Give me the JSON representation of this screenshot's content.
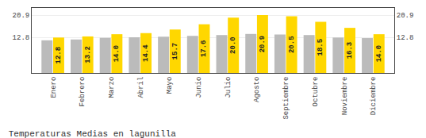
{
  "chart_data": {
    "type": "bar",
    "title": "Temperaturas Medias en lagunilla",
    "categories": [
      "Enero",
      "Febrero",
      "Marzo",
      "Abril",
      "Mayo",
      "Junio",
      "Julio",
      "Agosto",
      "Septiembre",
      "Octubre",
      "Noviembre",
      "Diciembre"
    ],
    "series": [
      {
        "color": "#BBBBBB",
        "values": [
          11.8,
          12.1,
          12.7,
          12.9,
          13.1,
          13.4,
          13.7,
          14.1,
          13.9,
          13.7,
          12.8,
          12.6
        ]
      },
      {
        "color": "#FFD700",
        "values": [
          12.8,
          13.2,
          14.0,
          14.4,
          15.7,
          17.6,
          20.0,
          20.9,
          20.5,
          18.5,
          16.3,
          14.0
        ],
        "data_labels": true,
        "value_labels": [
          "12.8",
          "13.2",
          "14.0",
          "14.4",
          "15.7",
          "17.6",
          "20.0",
          "20.9",
          "20.5",
          "18.5",
          "16.3",
          "14.0"
        ]
      }
    ],
    "ylim": [
      0,
      23.5
    ],
    "yticks": [
      12.8,
      20.9
    ],
    "y2lim": [
      0,
      23.5
    ],
    "y2ticks": [
      12.8,
      20.9
    ],
    "grid": true
  }
}
